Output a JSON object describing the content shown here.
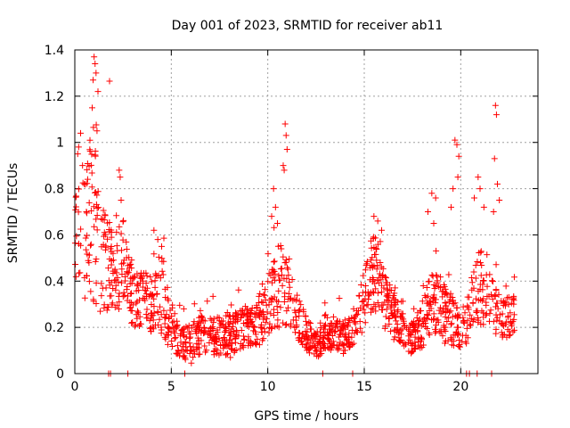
{
  "chart_data": {
    "type": "scatter",
    "title": "Day 001 of 2023, SRMTID for receiver ab11",
    "xlabel": "GPS time / hours",
    "ylabel": "SRMTID / TECUs",
    "xlim": [
      0,
      24
    ],
    "ylim": [
      0,
      1.4
    ],
    "xticks": [
      0,
      5,
      10,
      15,
      20
    ],
    "xtick_labels": [
      "0",
      "5",
      "10",
      "15",
      "20"
    ],
    "yticks": [
      0,
      0.2,
      0.4,
      0.6,
      0.8,
      1.0,
      1.2,
      1.4
    ],
    "ytick_labels": [
      "0",
      "0.2",
      "0.4",
      "0.6",
      "0.8",
      "1",
      "1.2",
      "1.4"
    ],
    "grid": true,
    "marker": "+",
    "color": "#ff0000",
    "envelope": {
      "description": "approximate band of the point cloud: [hour, typical low, typical high]",
      "points": [
        [
          0.0,
          0.38,
          0.75
        ],
        [
          0.5,
          0.3,
          0.9
        ],
        [
          1.0,
          0.3,
          1.05
        ],
        [
          1.5,
          0.25,
          0.7
        ],
        [
          2.0,
          0.25,
          0.6
        ],
        [
          2.5,
          0.3,
          0.7
        ],
        [
          3.0,
          0.2,
          0.45
        ],
        [
          3.5,
          0.2,
          0.45
        ],
        [
          4.0,
          0.18,
          0.45
        ],
        [
          4.5,
          0.15,
          0.55
        ],
        [
          5.0,
          0.1,
          0.3
        ],
        [
          5.5,
          0.06,
          0.2
        ],
        [
          6.0,
          0.06,
          0.22
        ],
        [
          6.5,
          0.08,
          0.25
        ],
        [
          7.0,
          0.08,
          0.25
        ],
        [
          7.5,
          0.08,
          0.25
        ],
        [
          8.0,
          0.08,
          0.25
        ],
        [
          8.5,
          0.1,
          0.27
        ],
        [
          9.0,
          0.1,
          0.28
        ],
        [
          9.5,
          0.12,
          0.3
        ],
        [
          10.0,
          0.15,
          0.45
        ],
        [
          10.5,
          0.2,
          0.6
        ],
        [
          11.0,
          0.2,
          0.5
        ],
        [
          11.5,
          0.15,
          0.35
        ],
        [
          12.0,
          0.1,
          0.25
        ],
        [
          12.5,
          0.06,
          0.18
        ],
        [
          13.0,
          0.1,
          0.22
        ],
        [
          13.5,
          0.1,
          0.22
        ],
        [
          14.0,
          0.1,
          0.25
        ],
        [
          14.5,
          0.1,
          0.25
        ],
        [
          15.0,
          0.2,
          0.45
        ],
        [
          15.5,
          0.25,
          0.6
        ],
        [
          16.0,
          0.2,
          0.45
        ],
        [
          16.5,
          0.15,
          0.35
        ],
        [
          17.0,
          0.1,
          0.28
        ],
        [
          17.5,
          0.08,
          0.22
        ],
        [
          18.0,
          0.1,
          0.3
        ],
        [
          18.5,
          0.15,
          0.45
        ],
        [
          19.0,
          0.15,
          0.4
        ],
        [
          19.5,
          0.12,
          0.35
        ],
        [
          20.0,
          0.1,
          0.25
        ],
        [
          20.5,
          0.15,
          0.4
        ],
        [
          21.0,
          0.2,
          0.55
        ],
        [
          21.5,
          0.2,
          0.5
        ],
        [
          22.0,
          0.15,
          0.35
        ],
        [
          22.5,
          0.15,
          0.35
        ],
        [
          22.8,
          0.18,
          0.35
        ]
      ]
    },
    "highlight_points": [
      [
        1.0,
        1.37
      ],
      [
        1.05,
        1.34
      ],
      [
        1.1,
        1.3
      ],
      [
        0.95,
        1.27
      ],
      [
        1.2,
        1.22
      ],
      [
        1.8,
        1.265
      ],
      [
        0.9,
        1.15
      ],
      [
        1.15,
        1.05
      ],
      [
        0.3,
        1.04
      ],
      [
        0.2,
        0.98
      ],
      [
        0.4,
        0.9
      ],
      [
        0.15,
        0.95
      ],
      [
        2.3,
        0.88
      ],
      [
        2.35,
        0.85
      ],
      [
        2.4,
        0.75
      ],
      [
        0.5,
        0.82
      ],
      [
        0.6,
        0.7
      ],
      [
        4.1,
        0.62
      ],
      [
        4.3,
        0.58
      ],
      [
        4.5,
        0.55
      ],
      [
        10.9,
        1.08
      ],
      [
        10.95,
        1.03
      ],
      [
        11.0,
        0.97
      ],
      [
        10.8,
        0.9
      ],
      [
        10.85,
        0.88
      ],
      [
        10.3,
        0.8
      ],
      [
        10.4,
        0.72
      ],
      [
        10.5,
        0.65
      ],
      [
        10.2,
        0.68
      ],
      [
        15.5,
        0.68
      ],
      [
        15.7,
        0.66
      ],
      [
        15.9,
        0.62
      ],
      [
        19.7,
        1.01
      ],
      [
        19.8,
        0.99
      ],
      [
        19.9,
        0.94
      ],
      [
        19.85,
        0.85
      ],
      [
        19.6,
        0.8
      ],
      [
        19.5,
        0.72
      ],
      [
        18.5,
        0.78
      ],
      [
        18.7,
        0.76
      ],
      [
        18.3,
        0.7
      ],
      [
        18.6,
        0.65
      ],
      [
        20.9,
        0.85
      ],
      [
        21.0,
        0.8
      ],
      [
        21.2,
        0.72
      ],
      [
        20.7,
        0.76
      ],
      [
        21.8,
        1.16
      ],
      [
        21.85,
        1.12
      ],
      [
        21.75,
        0.93
      ],
      [
        21.9,
        0.82
      ],
      [
        22.0,
        0.75
      ],
      [
        21.7,
        0.7
      ]
    ],
    "zero_points": [
      1.75,
      1.85,
      2.75,
      5.7,
      12.85,
      14.4,
      20.3,
      20.45,
      20.85,
      21.6
    ]
  }
}
